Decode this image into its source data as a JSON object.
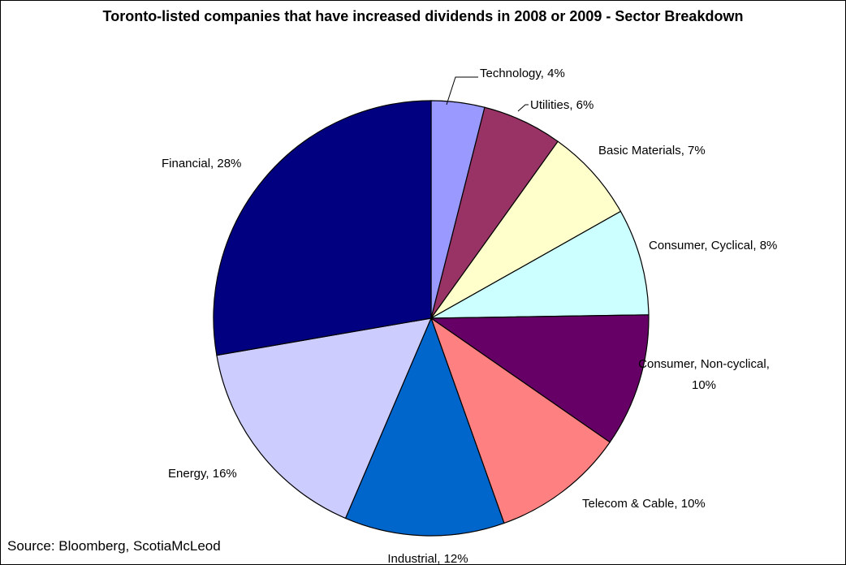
{
  "chart_data": {
    "type": "pie",
    "title": "Toronto-listed companies that have increased dividends in 2008 or 2009 - Sector Breakdown",
    "source": "Source: Bloomberg, ScotiaMcLeod",
    "slices": [
      {
        "name": "Technology",
        "value": 4,
        "label": "Technology, 4%",
        "color": "#9999ff"
      },
      {
        "name": "Utilities",
        "value": 6,
        "label": "Utilities, 6%",
        "color": "#993366"
      },
      {
        "name": "Basic Materials",
        "value": 7,
        "label": "Basic Materials, 7%",
        "color": "#ffffcc"
      },
      {
        "name": "Consumer, Cyclical",
        "value": 8,
        "label": "Consumer, Cyclical, 8%",
        "color": "#ccffff"
      },
      {
        "name": "Consumer, Non-cyclical",
        "value": 10,
        "label": "Consumer, Non-cyclical, 10%",
        "color": "#660066"
      },
      {
        "name": "Telecom & Cable",
        "value": 10,
        "label": "Telecom & Cable, 10%",
        "color": "#ff8080"
      },
      {
        "name": "Industrial",
        "value": 12,
        "label": "Industrial, 12%",
        "color": "#0066cc"
      },
      {
        "name": "Energy",
        "value": 16,
        "label": "Energy, 16%",
        "color": "#ccccff"
      },
      {
        "name": "Financial",
        "value": 28,
        "label": "Financial, 28%",
        "color": "#000080"
      }
    ]
  }
}
